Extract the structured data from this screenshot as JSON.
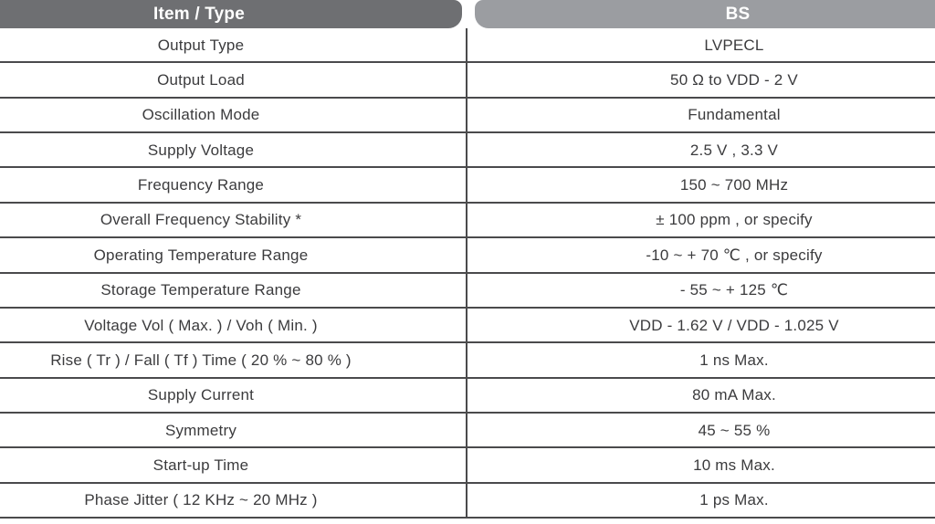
{
  "table": {
    "header": {
      "item_col": "Item / Type",
      "bs_col": "BS"
    },
    "rows": [
      {
        "item": "Output Type",
        "value": "LVPECL"
      },
      {
        "item": "Output Load",
        "value": "50 Ω to VDD - 2 V"
      },
      {
        "item": "Oscillation Mode",
        "value": "Fundamental"
      },
      {
        "item": "Supply Voltage",
        "value": "2.5 V , 3.3 V"
      },
      {
        "item": "Frequency Range",
        "value": "150 ~ 700 MHz"
      },
      {
        "item": "Overall Frequency Stability *",
        "value": "± 100 ppm , or specify"
      },
      {
        "item": "Operating Temperature Range",
        "value": "-10 ~ + 70 ℃ ,  or specify"
      },
      {
        "item": "Storage Temperature Range",
        "value": "- 55 ~ + 125 ℃"
      },
      {
        "item": "Voltage Vol ( Max. ) / Voh ( Min. )",
        "value": "VDD - 1.62 V / VDD - 1.025 V"
      },
      {
        "item": "Rise ( Tr ) / Fall ( Tf ) Time ( 20 % ~ 80 % )",
        "value": "1 ns Max."
      },
      {
        "item": "Supply Current",
        "value": "80 mA Max."
      },
      {
        "item": "Symmetry",
        "value": "45 ~ 55 %"
      },
      {
        "item": "Start-up Time",
        "value": "10 ms Max."
      },
      {
        "item": "Phase Jitter ( 12 KHz ~ 20 MHz )",
        "value": "1 ps Max."
      }
    ]
  },
  "colors": {
    "header_left_bg": "#6e6f72",
    "header_right_bg": "#9b9da1",
    "grid_line": "#4a4a4c",
    "text": "#3b3b3d",
    "header_text": "#ffffff"
  }
}
